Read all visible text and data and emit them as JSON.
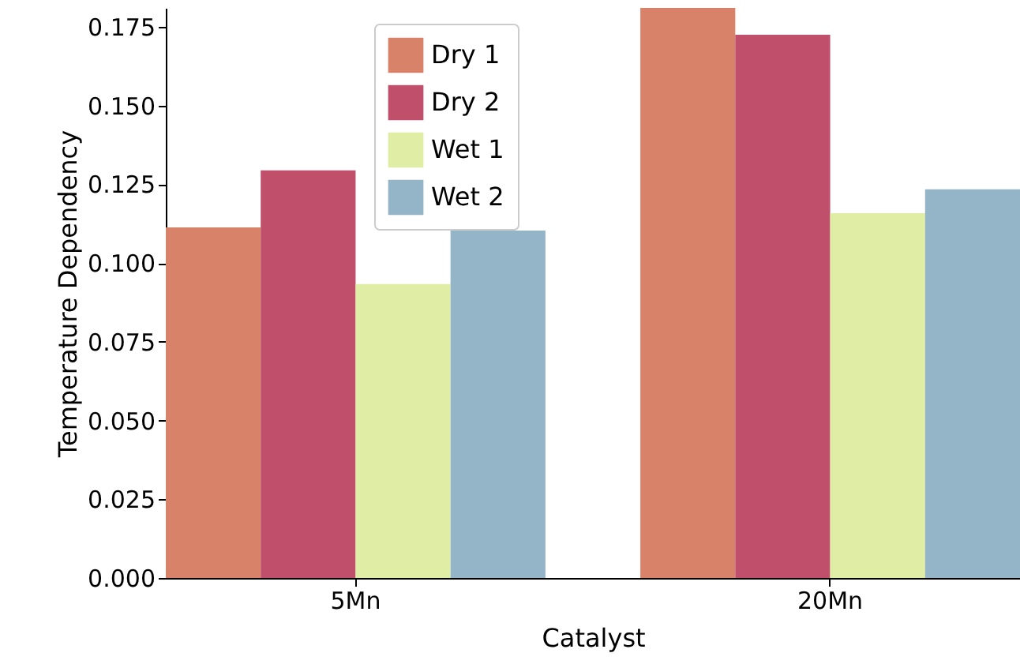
{
  "chart_data": {
    "type": "bar",
    "xlabel": "Catalyst",
    "ylabel": "Temperature Dependency",
    "categories": [
      "5Mn",
      "20Mn"
    ],
    "series": [
      {
        "name": "Dry 1",
        "color": "#d9826a",
        "values": [
          0.1113,
          0.181
        ]
      },
      {
        "name": "Dry 2",
        "color": "#bf4f6b",
        "values": [
          0.1294,
          0.1725
        ]
      },
      {
        "name": "Wet 1",
        "color": "#e0eea5",
        "values": [
          0.0933,
          0.1158
        ]
      },
      {
        "name": "Wet 2",
        "color": "#94b5c7",
        "values": [
          0.1103,
          0.1234
        ]
      }
    ],
    "ylim": [
      0,
      0.181
    ],
    "yticks": [
      {
        "value": 0,
        "label": "0.000"
      },
      {
        "value": 0.025,
        "label": "0.025"
      },
      {
        "value": 0.05,
        "label": "0.050"
      },
      {
        "value": 0.075,
        "label": "0.075"
      },
      {
        "value": 0.1,
        "label": "0.100"
      },
      {
        "value": 0.125,
        "label": "0.125"
      },
      {
        "value": 0.15,
        "label": "0.150"
      },
      {
        "value": 0.175,
        "label": "0.175"
      }
    ],
    "grid": false,
    "legend": "top"
  }
}
